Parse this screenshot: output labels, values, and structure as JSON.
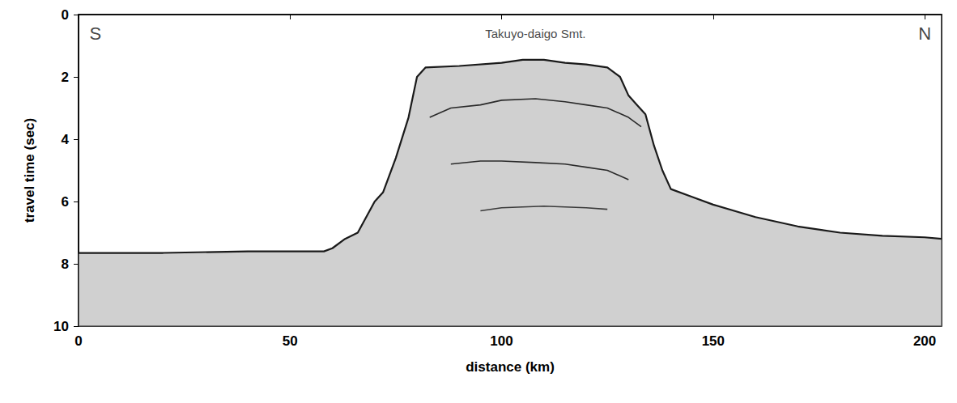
{
  "chart_data": {
    "type": "line",
    "x_label": "distance (km)",
    "y_label": "travel time (sec)",
    "xlim": [
      0,
      204
    ],
    "ylim": [
      10,
      0
    ],
    "xticks": [
      0,
      50,
      100,
      150,
      200
    ],
    "yticks": [
      0,
      2,
      4,
      6,
      8,
      10
    ],
    "grid": false,
    "annotations": [
      {
        "text": "S",
        "x": 4,
        "y": 0.6
      },
      {
        "text": "Takuyo-daigo Smt.",
        "x": 108,
        "y": 0.6
      },
      {
        "text": "N",
        "x": 200,
        "y": 0.6
      }
    ],
    "series": [
      {
        "color": "#1a1a1a",
        "x": [
          0,
          20,
          40,
          58,
          60,
          63,
          66,
          70,
          72,
          75,
          78,
          80,
          82,
          90,
          100,
          105,
          110,
          115,
          120,
          125,
          128,
          130,
          132,
          134,
          136,
          138,
          140,
          145,
          150,
          160,
          170,
          180,
          190,
          200,
          204
        ],
        "values": [
          7.65,
          7.65,
          7.6,
          7.6,
          7.5,
          7.2,
          7.0,
          6.0,
          5.7,
          4.6,
          3.3,
          2.0,
          1.7,
          1.65,
          1.55,
          1.45,
          1.45,
          1.55,
          1.6,
          1.7,
          2.0,
          2.6,
          2.9,
          3.2,
          4.2,
          5.0,
          5.6,
          5.85,
          6.1,
          6.5,
          6.8,
          7.0,
          7.1,
          7.15,
          7.2
        ]
      },
      {
        "color": "#2a2a2a",
        "x": [
          83,
          88,
          95,
          100,
          108,
          115,
          120,
          125,
          130,
          133
        ],
        "values": [
          3.3,
          3.0,
          2.9,
          2.75,
          2.7,
          2.8,
          2.9,
          3.0,
          3.3,
          3.6
        ]
      },
      {
        "color": "#2a2a2a",
        "x": [
          88,
          95,
          100,
          108,
          115,
          120,
          125,
          130
        ],
        "values": [
          4.8,
          4.7,
          4.7,
          4.75,
          4.8,
          4.9,
          5.0,
          5.3
        ]
      },
      {
        "color": "#3a3a3a",
        "x": [
          95,
          100,
          110,
          120,
          125
        ],
        "values": [
          6.3,
          6.2,
          6.15,
          6.2,
          6.25
        ]
      }
    ]
  }
}
